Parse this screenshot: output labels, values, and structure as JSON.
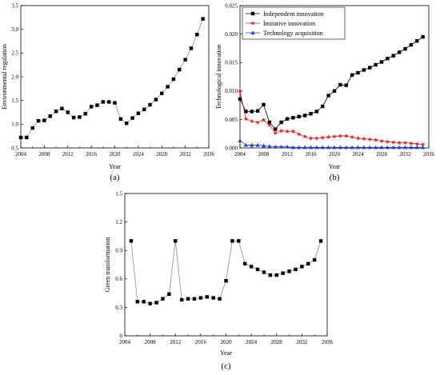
{
  "chart_data": [
    {
      "panel": "a",
      "label": "(a)",
      "type": "line",
      "xlabel": "Year",
      "ylabel": "Environmental regulation",
      "xlim": [
        2004,
        2036
      ],
      "ylim": [
        0.5,
        3.5
      ],
      "xticks": [
        2004,
        2008,
        2012,
        2016,
        2020,
        2024,
        2028,
        2032,
        2036
      ],
      "yticks": [
        0.5,
        1.0,
        1.5,
        2.0,
        2.5,
        3.0,
        3.5
      ],
      "ytick_labels": [
        "0.5",
        "1.0",
        "1.5",
        "2.0",
        "2.5",
        "3.0",
        "3.5"
      ],
      "series": [
        {
          "marker": "square",
          "color": "#000000",
          "line_color": "#8c8c8c",
          "x": [
            2004,
            2005,
            2006,
            2007,
            2008,
            2009,
            2010,
            2011,
            2012,
            2013,
            2014,
            2015,
            2016,
            2017,
            2018,
            2019,
            2020,
            2021,
            2022,
            2023,
            2024,
            2025,
            2026,
            2027,
            2028,
            2029,
            2030,
            2031,
            2032,
            2033,
            2034,
            2035
          ],
          "values": [
            0.72,
            0.72,
            0.92,
            1.07,
            1.08,
            1.17,
            1.27,
            1.33,
            1.25,
            1.14,
            1.15,
            1.22,
            1.37,
            1.4,
            1.47,
            1.47,
            1.45,
            1.11,
            1.02,
            1.13,
            1.23,
            1.31,
            1.41,
            1.52,
            1.65,
            1.79,
            1.95,
            2.15,
            2.36,
            2.6,
            2.89,
            3.22
          ]
        }
      ]
    },
    {
      "panel": "b",
      "label": "(b)",
      "type": "line",
      "xlabel": "Year",
      "ylabel": "Technological innovation",
      "xlim": [
        2004,
        2036
      ],
      "ylim": [
        0,
        0.025
      ],
      "xticks": [
        2004,
        2008,
        2012,
        2016,
        2020,
        2024,
        2028,
        2032,
        2036
      ],
      "yticks": [
        0,
        0.005,
        0.01,
        0.015,
        0.02,
        0.025
      ],
      "ytick_labels": [
        "0.000",
        "0.005",
        "0.010",
        "0.015",
        "0.020",
        "0.025"
      ],
      "legend_position": "top-left",
      "series": [
        {
          "name": "Independent innovation",
          "marker": "square",
          "color": "#000000",
          "x": [
            2004,
            2005,
            2006,
            2007,
            2008,
            2009,
            2010,
            2011,
            2012,
            2013,
            2014,
            2015,
            2016,
            2017,
            2018,
            2019,
            2020,
            2021,
            2022,
            2023,
            2024,
            2025,
            2026,
            2027,
            2028,
            2029,
            2030,
            2031,
            2032,
            2033,
            2034,
            2035
          ],
          "values": [
            0.0086,
            0.0064,
            0.0064,
            0.0065,
            0.0076,
            0.0045,
            0.0033,
            0.0045,
            0.0051,
            0.0053,
            0.0055,
            0.0057,
            0.006,
            0.0064,
            0.0073,
            0.0092,
            0.01,
            0.0111,
            0.011,
            0.0128,
            0.0132,
            0.0137,
            0.0141,
            0.0146,
            0.0151,
            0.0157,
            0.0162,
            0.0168,
            0.0174,
            0.0181,
            0.0188,
            0.0195
          ]
        },
        {
          "name": "Imitative innovation",
          "marker": "star",
          "color": "#e8231c",
          "x": [
            2004,
            2005,
            2006,
            2007,
            2008,
            2009,
            2010,
            2011,
            2012,
            2013,
            2014,
            2015,
            2016,
            2017,
            2018,
            2019,
            2020,
            2021,
            2022,
            2023,
            2024,
            2025,
            2026,
            2027,
            2028,
            2029,
            2030,
            2031,
            2032,
            2033,
            2034,
            2035
          ],
          "values": [
            0.01,
            0.0051,
            0.0047,
            0.0045,
            0.0049,
            0.004,
            0.0026,
            0.003,
            0.0029,
            0.0029,
            0.0024,
            0.002,
            0.0017,
            0.0017,
            0.0018,
            0.0019,
            0.002,
            0.0021,
            0.0021,
            0.0019,
            0.0017,
            0.0016,
            0.0015,
            0.0014,
            0.0012,
            0.0011,
            0.001,
            0.0009,
            0.0009,
            0.0008,
            0.0007,
            0.0006
          ]
        },
        {
          "name": "Technology acquisition",
          "marker": "triangle",
          "color": "#1f3fd6",
          "x": [
            2004,
            2005,
            2006,
            2007,
            2008,
            2009,
            2010,
            2011,
            2012,
            2013,
            2014,
            2015,
            2016,
            2017,
            2018,
            2019,
            2020,
            2021,
            2022,
            2023,
            2024,
            2025,
            2026,
            2027,
            2028,
            2029,
            2030,
            2031,
            2032,
            2033,
            2034,
            2035
          ],
          "values": [
            0.0013,
            0.0005,
            0.0005,
            0.0005,
            0.0004,
            0.0003,
            0.0002,
            0.0002,
            0.0002,
            0.0001,
            0.0001,
            0.0001,
            0.0001,
            0.0001,
            0.0001,
            0.0001,
            0.0001,
            0.0001,
            0.0001,
            0.0001,
            0.0001,
            0.0001,
            0.0001,
            0.0001,
            0.0001,
            0.0001,
            0.0001,
            0.0001,
            0.0001,
            0.0001,
            0.0001,
            0.0001
          ]
        }
      ]
    },
    {
      "panel": "c",
      "label": "(c)",
      "type": "line",
      "xlabel": "Year",
      "ylabel": "Green transformation",
      "xlim": [
        2004,
        2036
      ],
      "ylim": [
        0,
        1.5
      ],
      "xticks": [
        2004,
        2008,
        2012,
        2016,
        2020,
        2024,
        2028,
        2032,
        2036
      ],
      "yticks": [
        0,
        0.3,
        0.6,
        0.9,
        1.2,
        1.5
      ],
      "ytick_labels": [
        "0",
        "0.3",
        "0.6",
        "0.9",
        "1.2",
        "1.5"
      ],
      "series": [
        {
          "marker": "square",
          "color": "#000000",
          "line_color": "#8c8c8c",
          "x": [
            2005,
            2006,
            2007,
            2008,
            2009,
            2010,
            2011,
            2012,
            2013,
            2014,
            2015,
            2016,
            2017,
            2018,
            2019,
            2020,
            2021,
            2022,
            2023,
            2024,
            2025,
            2026,
            2027,
            2028,
            2029,
            2030,
            2031,
            2032,
            2033,
            2034,
            2035
          ],
          "values": [
            1.0,
            0.36,
            0.36,
            0.34,
            0.35,
            0.39,
            0.44,
            1.0,
            0.38,
            0.39,
            0.39,
            0.4,
            0.41,
            0.4,
            0.39,
            0.58,
            1.0,
            1.0,
            0.76,
            0.73,
            0.7,
            0.67,
            0.64,
            0.64,
            0.66,
            0.68,
            0.7,
            0.73,
            0.76,
            0.8,
            1.0
          ]
        }
      ]
    }
  ]
}
